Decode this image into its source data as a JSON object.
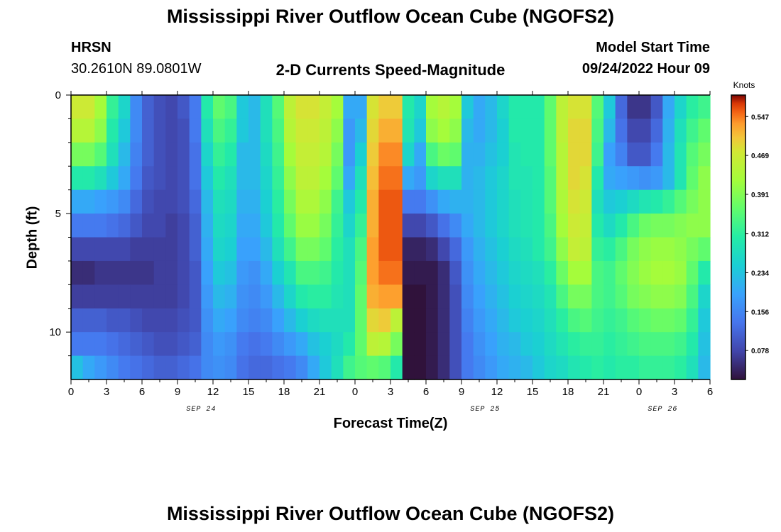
{
  "page": {
    "title": "Mississippi River Outflow Ocean Cube (NGOFS2)",
    "station_code": "HRSN",
    "station_coords": "30.2610N  89.0801W",
    "subtitle": "2-D Currents Speed-Magnitude",
    "model_start_label": "Model Start Time",
    "model_start_value": "09/24/2022 Hour 09",
    "bottom_title": "Mississippi River Outflow Ocean Cube (NGOFS2)"
  },
  "chart_data": {
    "type": "heatmap",
    "title": "2-D Currents Speed-Magnitude",
    "xlabel": "Forecast Time(Z)",
    "ylabel": "Depth (ft)",
    "x_ticks": [
      "0",
      "3",
      "6",
      "9",
      "12",
      "15",
      "18",
      "21",
      "0",
      "3",
      "6",
      "9",
      "12",
      "15",
      "18",
      "21",
      "0",
      "3",
      "6"
    ],
    "x_hours_range": [
      0,
      54
    ],
    "date_labels": [
      {
        "text": "SEP 24",
        "hour": 11
      },
      {
        "text": "SEP 25",
        "hour": 35
      },
      {
        "text": "SEP 26",
        "hour": 50
      }
    ],
    "y_ticks": [
      "0",
      "5",
      "10"
    ],
    "ylim": [
      0,
      12
    ],
    "y_inverted": true,
    "colorbar": {
      "title": "Knots",
      "ticks": [
        "0.547",
        "0.469",
        "0.391",
        "0.312",
        "0.234",
        "0.156",
        "0.078"
      ],
      "range": [
        0.02,
        0.59
      ],
      "colormap": "turbo"
    },
    "depth_rows_ft": [
      0.5,
      1.5,
      2.5,
      3.5,
      4.5,
      5.5,
      6.5,
      7.5,
      8.5,
      9.5,
      10.5,
      11.5
    ],
    "column_hours": [
      0,
      1,
      2,
      3,
      4,
      5,
      6,
      7,
      8,
      9,
      10,
      11,
      12,
      13,
      14,
      15,
      16,
      17,
      18,
      19,
      20,
      21,
      22,
      23,
      24,
      25,
      26,
      27,
      28,
      29,
      30,
      31,
      32,
      33,
      34,
      35,
      36,
      37,
      38,
      39,
      40,
      41,
      42,
      43,
      44,
      45,
      46,
      47,
      48,
      49,
      50,
      51,
      52,
      53
    ],
    "speed_knots": [
      [
        0.47,
        0.47,
        0.42,
        0.32,
        0.26,
        0.16,
        0.11,
        0.09,
        0.08,
        0.1,
        0.14,
        0.3,
        0.36,
        0.34,
        0.24,
        0.22,
        0.28,
        0.35,
        0.45,
        0.48,
        0.48,
        0.46,
        0.42,
        0.2,
        0.2,
        0.48,
        0.5,
        0.5,
        0.3,
        0.26,
        0.42,
        0.44,
        0.42,
        0.24,
        0.2,
        0.22,
        0.26,
        0.3,
        0.3,
        0.3,
        0.36,
        0.45,
        0.48,
        0.48,
        0.35,
        0.24,
        0.12,
        0.06,
        0.06,
        0.1,
        0.2,
        0.26,
        0.31,
        0.33
      ],
      [
        0.44,
        0.44,
        0.4,
        0.3,
        0.24,
        0.16,
        0.11,
        0.09,
        0.08,
        0.09,
        0.14,
        0.28,
        0.34,
        0.32,
        0.24,
        0.22,
        0.28,
        0.34,
        0.44,
        0.47,
        0.47,
        0.45,
        0.4,
        0.18,
        0.22,
        0.49,
        0.52,
        0.52,
        0.29,
        0.24,
        0.4,
        0.42,
        0.4,
        0.22,
        0.2,
        0.22,
        0.25,
        0.3,
        0.3,
        0.3,
        0.36,
        0.45,
        0.49,
        0.49,
        0.34,
        0.22,
        0.13,
        0.08,
        0.08,
        0.12,
        0.21,
        0.28,
        0.33,
        0.36
      ],
      [
        0.38,
        0.38,
        0.35,
        0.28,
        0.22,
        0.15,
        0.11,
        0.09,
        0.08,
        0.09,
        0.13,
        0.26,
        0.32,
        0.3,
        0.22,
        0.22,
        0.27,
        0.33,
        0.42,
        0.46,
        0.46,
        0.44,
        0.38,
        0.18,
        0.25,
        0.5,
        0.54,
        0.54,
        0.26,
        0.2,
        0.34,
        0.37,
        0.36,
        0.21,
        0.21,
        0.23,
        0.25,
        0.29,
        0.3,
        0.3,
        0.36,
        0.44,
        0.49,
        0.49,
        0.33,
        0.19,
        0.15,
        0.1,
        0.1,
        0.14,
        0.22,
        0.29,
        0.35,
        0.38
      ],
      [
        0.3,
        0.3,
        0.28,
        0.24,
        0.2,
        0.14,
        0.1,
        0.09,
        0.08,
        0.09,
        0.13,
        0.24,
        0.3,
        0.28,
        0.22,
        0.22,
        0.26,
        0.32,
        0.4,
        0.45,
        0.45,
        0.42,
        0.36,
        0.2,
        0.28,
        0.51,
        0.55,
        0.55,
        0.2,
        0.18,
        0.26,
        0.28,
        0.28,
        0.21,
        0.22,
        0.24,
        0.26,
        0.29,
        0.29,
        0.3,
        0.35,
        0.44,
        0.49,
        0.48,
        0.3,
        0.2,
        0.19,
        0.18,
        0.17,
        0.18,
        0.22,
        0.29,
        0.36,
        0.4
      ],
      [
        0.2,
        0.2,
        0.19,
        0.18,
        0.16,
        0.12,
        0.09,
        0.08,
        0.08,
        0.09,
        0.12,
        0.22,
        0.28,
        0.27,
        0.21,
        0.21,
        0.25,
        0.31,
        0.38,
        0.43,
        0.43,
        0.4,
        0.33,
        0.24,
        0.3,
        0.52,
        0.56,
        0.56,
        0.14,
        0.14,
        0.17,
        0.2,
        0.21,
        0.21,
        0.22,
        0.24,
        0.26,
        0.28,
        0.29,
        0.3,
        0.35,
        0.43,
        0.48,
        0.47,
        0.28,
        0.24,
        0.25,
        0.27,
        0.29,
        0.3,
        0.32,
        0.35,
        0.38,
        0.4
      ],
      [
        0.14,
        0.14,
        0.14,
        0.13,
        0.12,
        0.1,
        0.08,
        0.08,
        0.07,
        0.08,
        0.11,
        0.21,
        0.27,
        0.26,
        0.2,
        0.2,
        0.24,
        0.3,
        0.36,
        0.41,
        0.41,
        0.38,
        0.32,
        0.26,
        0.32,
        0.52,
        0.56,
        0.56,
        0.08,
        0.08,
        0.1,
        0.13,
        0.16,
        0.2,
        0.22,
        0.24,
        0.26,
        0.28,
        0.29,
        0.3,
        0.34,
        0.42,
        0.47,
        0.46,
        0.3,
        0.27,
        0.3,
        0.34,
        0.37,
        0.38,
        0.38,
        0.39,
        0.4,
        0.4
      ],
      [
        0.08,
        0.08,
        0.08,
        0.08,
        0.08,
        0.07,
        0.07,
        0.07,
        0.07,
        0.08,
        0.11,
        0.2,
        0.26,
        0.25,
        0.19,
        0.19,
        0.22,
        0.28,
        0.33,
        0.38,
        0.38,
        0.36,
        0.31,
        0.28,
        0.34,
        0.53,
        0.56,
        0.56,
        0.04,
        0.04,
        0.05,
        0.08,
        0.12,
        0.18,
        0.21,
        0.23,
        0.25,
        0.27,
        0.28,
        0.3,
        0.33,
        0.4,
        0.46,
        0.45,
        0.32,
        0.31,
        0.34,
        0.38,
        0.4,
        0.41,
        0.41,
        0.4,
        0.38,
        0.36
      ],
      [
        0.05,
        0.05,
        0.06,
        0.06,
        0.06,
        0.06,
        0.06,
        0.07,
        0.07,
        0.08,
        0.1,
        0.19,
        0.24,
        0.23,
        0.18,
        0.17,
        0.2,
        0.25,
        0.29,
        0.34,
        0.34,
        0.33,
        0.3,
        0.28,
        0.35,
        0.53,
        0.55,
        0.55,
        0.03,
        0.03,
        0.03,
        0.05,
        0.1,
        0.17,
        0.2,
        0.22,
        0.24,
        0.26,
        0.27,
        0.28,
        0.31,
        0.37,
        0.42,
        0.42,
        0.34,
        0.33,
        0.36,
        0.39,
        0.41,
        0.42,
        0.42,
        0.41,
        0.36,
        0.3
      ],
      [
        0.07,
        0.07,
        0.07,
        0.07,
        0.07,
        0.07,
        0.07,
        0.07,
        0.07,
        0.08,
        0.1,
        0.18,
        0.22,
        0.21,
        0.17,
        0.16,
        0.18,
        0.22,
        0.26,
        0.3,
        0.31,
        0.31,
        0.29,
        0.28,
        0.36,
        0.52,
        0.53,
        0.53,
        0.02,
        0.02,
        0.03,
        0.05,
        0.09,
        0.16,
        0.19,
        0.21,
        0.23,
        0.25,
        0.26,
        0.27,
        0.29,
        0.34,
        0.38,
        0.38,
        0.34,
        0.33,
        0.35,
        0.38,
        0.39,
        0.4,
        0.4,
        0.39,
        0.34,
        0.26
      ],
      [
        0.11,
        0.11,
        0.11,
        0.1,
        0.1,
        0.09,
        0.08,
        0.08,
        0.08,
        0.09,
        0.1,
        0.17,
        0.2,
        0.19,
        0.16,
        0.15,
        0.16,
        0.19,
        0.22,
        0.25,
        0.27,
        0.28,
        0.28,
        0.28,
        0.36,
        0.49,
        0.5,
        0.45,
        0.02,
        0.02,
        0.03,
        0.05,
        0.09,
        0.15,
        0.18,
        0.2,
        0.22,
        0.24,
        0.25,
        0.26,
        0.28,
        0.31,
        0.34,
        0.35,
        0.33,
        0.32,
        0.33,
        0.35,
        0.36,
        0.37,
        0.37,
        0.36,
        0.32,
        0.24
      ],
      [
        0.14,
        0.14,
        0.14,
        0.13,
        0.12,
        0.11,
        0.1,
        0.09,
        0.09,
        0.1,
        0.11,
        0.16,
        0.18,
        0.17,
        0.14,
        0.13,
        0.14,
        0.16,
        0.18,
        0.2,
        0.23,
        0.25,
        0.27,
        0.3,
        0.36,
        0.45,
        0.44,
        0.38,
        0.02,
        0.02,
        0.03,
        0.05,
        0.09,
        0.14,
        0.17,
        0.19,
        0.21,
        0.22,
        0.24,
        0.25,
        0.27,
        0.29,
        0.31,
        0.32,
        0.32,
        0.31,
        0.32,
        0.33,
        0.34,
        0.34,
        0.34,
        0.33,
        0.3,
        0.23
      ],
      [
        0.23,
        0.2,
        0.18,
        0.16,
        0.14,
        0.13,
        0.12,
        0.11,
        0.11,
        0.12,
        0.13,
        0.16,
        0.17,
        0.16,
        0.13,
        0.12,
        0.12,
        0.13,
        0.14,
        0.16,
        0.2,
        0.24,
        0.28,
        0.33,
        0.35,
        0.36,
        0.35,
        0.3,
        0.02,
        0.02,
        0.03,
        0.05,
        0.09,
        0.14,
        0.16,
        0.18,
        0.2,
        0.21,
        0.22,
        0.24,
        0.26,
        0.27,
        0.29,
        0.3,
        0.31,
        0.3,
        0.31,
        0.31,
        0.32,
        0.32,
        0.32,
        0.31,
        0.28,
        0.22
      ]
    ]
  }
}
